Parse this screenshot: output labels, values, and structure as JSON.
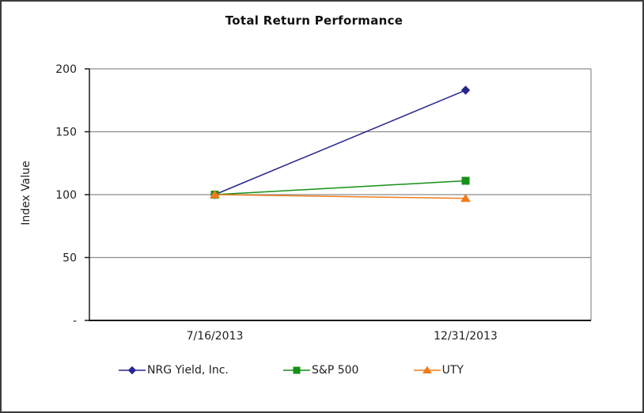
{
  "chart_data": {
    "type": "line",
    "title": "Total Return Performance",
    "xlabel": "",
    "ylabel": "Index Value",
    "categories": [
      "7/16/2013",
      "12/31/2013"
    ],
    "series": [
      {
        "name": "NRG Yield, Inc.",
        "values": [
          100,
          183
        ],
        "color": "#26268C",
        "marker": "diamond"
      },
      {
        "name": "S&P 500",
        "values": [
          100,
          111
        ],
        "color": "#169016",
        "marker": "square"
      },
      {
        "name": "UTY",
        "values": [
          100,
          97
        ],
        "color": "#F07C1C",
        "marker": "triangle"
      }
    ],
    "ylim": [
      0,
      200
    ],
    "yticks": [
      {
        "value": 200,
        "label": "200"
      },
      {
        "value": 150,
        "label": "150"
      },
      {
        "value": 100,
        "label": "100"
      },
      {
        "value": 50,
        "label": "50"
      },
      {
        "value": 0,
        "label": "-"
      }
    ],
    "grid": true,
    "legend_position": "bottom",
    "colors": {
      "gridline": "#8C8C8C",
      "axis": "#1a1a1a",
      "text": "#1f1f1f",
      "background": "#ffffff",
      "border": "#3c3c3c"
    }
  }
}
